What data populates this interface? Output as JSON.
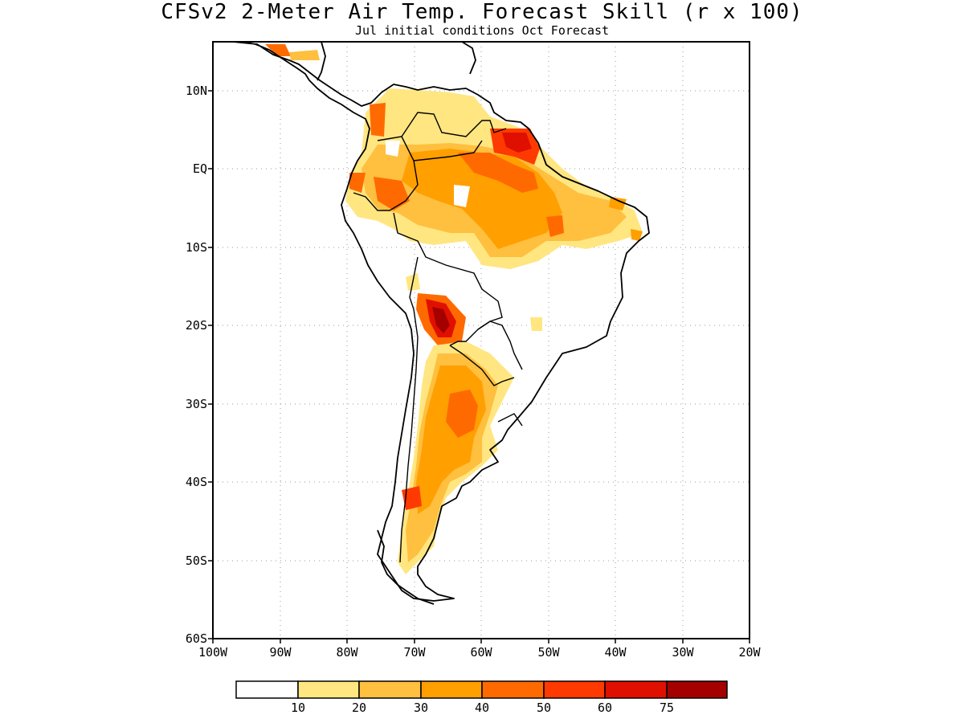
{
  "title": "CFSv2 2-Meter Air Temp. Forecast Skill (r x 100)",
  "subtitle": "Jul initial conditions  Oct Forecast",
  "lat_ticks": [
    "10N",
    "EQ",
    "10S",
    "20S",
    "30S",
    "40S",
    "50S",
    "60S"
  ],
  "lon_ticks": [
    "100W",
    "90W",
    "80W",
    "70W",
    "60W",
    "50W",
    "40W",
    "30W",
    "20W"
  ],
  "colorbar": {
    "colors": [
      "#ffffff",
      "#ffe680",
      "#ffbf3f",
      "#ff9f00",
      "#ff6a00",
      "#ff3a00",
      "#e01000",
      "#a50000"
    ],
    "labels": [
      "10",
      "20",
      "30",
      "40",
      "50",
      "60",
      "75"
    ]
  }
}
